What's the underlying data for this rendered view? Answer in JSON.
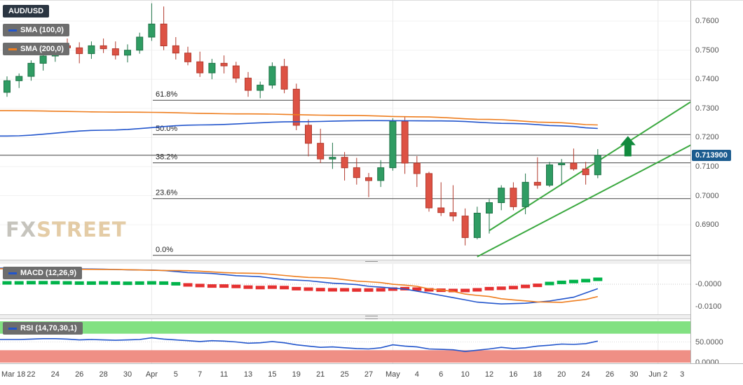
{
  "colors": {
    "candle_up": "#2f9c63",
    "candle_up_border": "#1f7347",
    "candle_down": "#dd5244",
    "candle_down_border": "#b23a2e",
    "sma100": "#2255cc",
    "sma200": "#ee7d1e",
    "macd": "#2255cc",
    "signal": "#ee7d1e",
    "hist_up": "#00b34a",
    "hist_down": "#e53030",
    "rsi": "#2255cc",
    "rsi_overbought": "#82e182",
    "rsi_oversold": "#ef8f85",
    "channel": "#3aa83f",
    "arrow": "#118a3d",
    "badge_bg": "#1c5c8f",
    "tag_dark": "#2b3642",
    "tag_gray": "#6d6d6d",
    "fib_line": "#444444",
    "grid": "#f2f2f2",
    "month_grid": "#e9e9e9"
  },
  "legend": {
    "symbol": "AUD/USD",
    "sma100": "SMA (100,0)",
    "sma200": "SMA (200,0)"
  },
  "watermark": {
    "fx": "FX",
    "street": "STREET"
  },
  "chart_data": [
    {
      "type": "candlestick",
      "title": "AUD/USD",
      "y_ticks": [
        "0.7600",
        "0.7500",
        "0.7400",
        "0.7300",
        "0.7200",
        "0.7100",
        "0.7000",
        "0.6900"
      ],
      "y_range": [
        0.678,
        0.767
      ],
      "x_labels": [
        "Mar 18",
        "22",
        "24",
        "26",
        "28",
        "30",
        "Apr",
        "5",
        "7",
        "11",
        "13",
        "15",
        "19",
        "21",
        "25",
        "27",
        "May",
        "4",
        "6",
        "10",
        "12",
        "16",
        "18",
        "20",
        "24",
        "26",
        "30",
        "Jun 2",
        "3"
      ],
      "month_tick_indices": [
        12,
        32,
        54
      ],
      "last_price": "0.713900",
      "last_price_value": 0.7139,
      "fib_levels": [
        {
          "label": "61.8%",
          "price": 0.7328
        },
        {
          "label": "50.0%",
          "price": 0.721
        },
        {
          "label": "38.2%",
          "price": 0.7113
        },
        {
          "label": "23.6%",
          "price": 0.699
        },
        {
          "label": "0.0%",
          "price": 0.6795
        }
      ],
      "candles": [
        [
          0.7355,
          0.741,
          0.734,
          0.7395
        ],
        [
          0.7395,
          0.742,
          0.737,
          0.741
        ],
        [
          0.741,
          0.7465,
          0.7395,
          0.7455
        ],
        [
          0.7455,
          0.749,
          0.743,
          0.748
        ],
        [
          0.748,
          0.7525,
          0.746,
          0.7515
        ],
        [
          0.7515,
          0.754,
          0.749,
          0.7508
        ],
        [
          0.7508,
          0.7527,
          0.7455,
          0.7488
        ],
        [
          0.7488,
          0.753,
          0.747,
          0.7515
        ],
        [
          0.7515,
          0.754,
          0.749,
          0.7505
        ],
        [
          0.7505,
          0.753,
          0.7468,
          0.7483
        ],
        [
          0.7483,
          0.752,
          0.7458,
          0.75
        ],
        [
          0.75,
          0.756,
          0.7488,
          0.7545
        ],
        [
          0.7545,
          0.7661,
          0.7532,
          0.759
        ],
        [
          0.759,
          0.765,
          0.75,
          0.7515
        ],
        [
          0.7515,
          0.7545,
          0.7468,
          0.749
        ],
        [
          0.749,
          0.7512,
          0.7448,
          0.746
        ],
        [
          0.746,
          0.7495,
          0.7408,
          0.7422
        ],
        [
          0.7422,
          0.747,
          0.74,
          0.7455
        ],
        [
          0.7455,
          0.7482,
          0.742,
          0.7446
        ],
        [
          0.7446,
          0.746,
          0.7388,
          0.7404
        ],
        [
          0.7404,
          0.7425,
          0.734,
          0.7362
        ],
        [
          0.7362,
          0.7392,
          0.7335,
          0.738
        ],
        [
          0.738,
          0.7458,
          0.7368,
          0.7444
        ],
        [
          0.7444,
          0.747,
          0.7352,
          0.7366
        ],
        [
          0.7366,
          0.7385,
          0.7225,
          0.7242
        ],
        [
          0.7242,
          0.7262,
          0.7135,
          0.718
        ],
        [
          0.718,
          0.723,
          0.7112,
          0.7126
        ],
        [
          0.7126,
          0.7182,
          0.7092,
          0.7132
        ],
        [
          0.7132,
          0.715,
          0.7052,
          0.7096
        ],
        [
          0.7096,
          0.713,
          0.7038,
          0.7062
        ],
        [
          0.7062,
          0.7078,
          0.6995,
          0.7052
        ],
        [
          0.7052,
          0.7122,
          0.703,
          0.7096
        ],
        [
          0.7096,
          0.7266,
          0.7086,
          0.7256
        ],
        [
          0.7256,
          0.7272,
          0.7075,
          0.7112
        ],
        [
          0.7112,
          0.7136,
          0.703,
          0.7076
        ],
        [
          0.7076,
          0.7082,
          0.6945,
          0.6958
        ],
        [
          0.6958,
          0.7046,
          0.693,
          0.6942
        ],
        [
          0.6942,
          0.7036,
          0.6912,
          0.693
        ],
        [
          0.693,
          0.6956,
          0.6829,
          0.6856
        ],
        [
          0.6856,
          0.6962,
          0.685,
          0.694
        ],
        [
          0.694,
          0.6988,
          0.687,
          0.6976
        ],
        [
          0.6976,
          0.7036,
          0.695,
          0.7026
        ],
        [
          0.7026,
          0.7046,
          0.695,
          0.6962
        ],
        [
          0.6962,
          0.7076,
          0.6936,
          0.7046
        ],
        [
          0.7046,
          0.7132,
          0.7024,
          0.7036
        ],
        [
          0.7036,
          0.7116,
          0.703,
          0.7106
        ],
        [
          0.7106,
          0.7126,
          0.7036,
          0.7112
        ],
        [
          0.7112,
          0.7162,
          0.7086,
          0.7092
        ],
        [
          0.7092,
          0.7116,
          0.7038,
          0.7072
        ],
        [
          0.7072,
          0.716,
          0.706,
          0.7139
        ]
      ],
      "sma100": [
        [
          0,
          0.7205
        ],
        [
          8,
          0.7225
        ],
        [
          16,
          0.7243
        ],
        [
          24,
          0.7254
        ],
        [
          30,
          0.7258
        ],
        [
          36,
          0.7257
        ],
        [
          42,
          0.7248
        ],
        [
          46,
          0.724
        ],
        [
          49,
          0.7231
        ]
      ],
      "sma200": [
        [
          0,
          0.7292
        ],
        [
          10,
          0.7287
        ],
        [
          20,
          0.7281
        ],
        [
          28,
          0.7276
        ],
        [
          34,
          0.7271
        ],
        [
          40,
          0.7262
        ],
        [
          45,
          0.7252
        ],
        [
          49,
          0.7243
        ]
      ],
      "channel": {
        "lower": [
          [
            39,
            0.679
          ],
          [
            57,
            0.718
          ]
        ],
        "upper": [
          [
            40,
            0.688
          ],
          [
            57,
            0.733
          ]
        ]
      },
      "arrow": {
        "idx": 51.5,
        "price_from": 0.7135,
        "price_to": 0.7205
      }
    },
    {
      "type": "line",
      "title": "MACD (12,26,9)",
      "y_ticks": [
        "-0.0000",
        "-0.0100"
      ],
      "macd_line": [
        [
          0,
          0.0072
        ],
        [
          6,
          0.0068
        ],
        [
          12,
          0.0063
        ],
        [
          16,
          0.005
        ],
        [
          20,
          0.0036
        ],
        [
          24,
          0.0018
        ],
        [
          28,
          0.0002
        ],
        [
          31,
          -0.0013
        ],
        [
          33,
          -0.0022
        ],
        [
          35,
          -0.004
        ],
        [
          37,
          -0.006
        ],
        [
          39,
          -0.008
        ],
        [
          41,
          -0.0088
        ],
        [
          43,
          -0.0085
        ],
        [
          45,
          -0.0075
        ],
        [
          47,
          -0.0058
        ],
        [
          49,
          -0.002
        ]
      ],
      "signal_line": [
        [
          0,
          0.0069
        ],
        [
          8,
          0.0066
        ],
        [
          14,
          0.0061
        ],
        [
          20,
          0.0049
        ],
        [
          26,
          0.0029
        ],
        [
          30,
          0.0011
        ],
        [
          33,
          -0.0004
        ],
        [
          36,
          -0.0026
        ],
        [
          39,
          -0.005
        ],
        [
          42,
          -0.007
        ],
        [
          44,
          -0.0079
        ],
        [
          46,
          -0.0081
        ],
        [
          48,
          -0.0068
        ],
        [
          49,
          -0.0055
        ]
      ],
      "histogram": [
        0.0006,
        0.0006,
        0.0007,
        0.0007,
        0.0007,
        0.0006,
        0.0005,
        0.0005,
        0.0006,
        0.0005,
        0.0004,
        0.0005,
        0.0006,
        0.0005,
        0.0002,
        -0.0003,
        -0.0006,
        -0.0008,
        -0.0008,
        -0.001,
        -0.0013,
        -0.0015,
        -0.0013,
        -0.0015,
        -0.002,
        -0.0022,
        -0.0024,
        -0.0025,
        -0.0025,
        -0.0026,
        -0.0026,
        -0.0025,
        -0.0022,
        -0.002,
        -0.0022,
        -0.0025,
        -0.0027,
        -0.0028,
        -0.0028,
        -0.0025,
        -0.002,
        -0.0018,
        -0.0015,
        -0.001,
        -0.0005,
        0.0003,
        0.0008,
        0.0012,
        0.0016,
        0.0022
      ]
    },
    {
      "type": "line",
      "title": "RSI (14,70,30,1)",
      "y_ticks": [
        "50.0000",
        "0.0000"
      ],
      "bands": {
        "overbought": [
          70,
          100
        ],
        "oversold": [
          0,
          30
        ]
      },
      "values": [
        56,
        56,
        57,
        58,
        58,
        57,
        55,
        56,
        55,
        54,
        55,
        56,
        60,
        57,
        55,
        53,
        51,
        53,
        52,
        50,
        47,
        48,
        51,
        48,
        43,
        40,
        37,
        38,
        36,
        34,
        33,
        36,
        43,
        40,
        38,
        33,
        32,
        31,
        27,
        30,
        33,
        37,
        34,
        36,
        40,
        42,
        45,
        44,
        46,
        52
      ]
    }
  ]
}
